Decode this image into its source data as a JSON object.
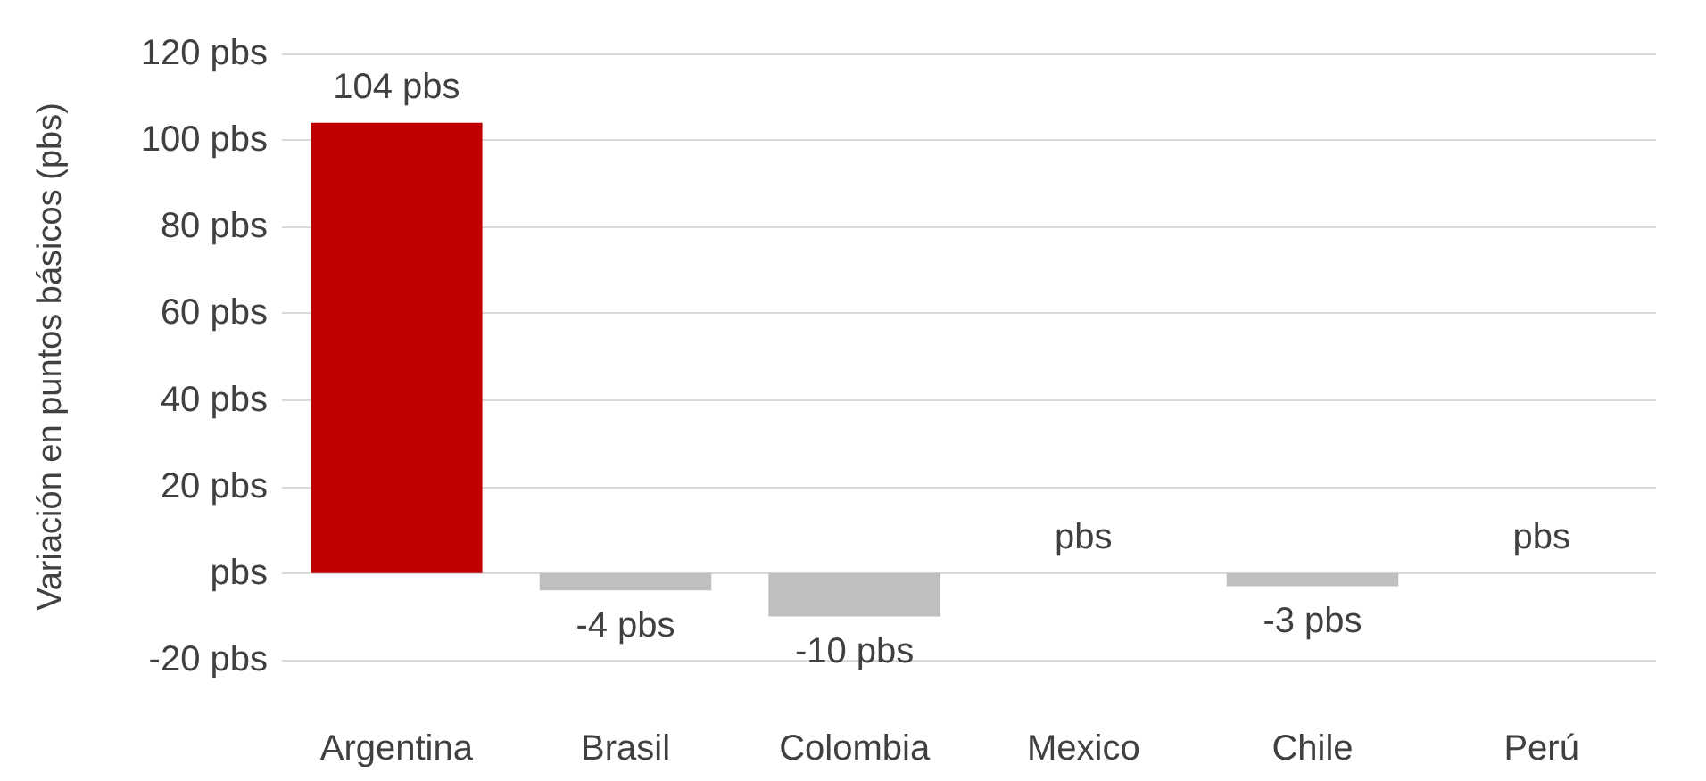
{
  "chart_data": {
    "type": "bar",
    "ylabel": "Variación en puntos básicos (pbs)",
    "categories": [
      "Argentina",
      "Brasil",
      "Colombia",
      "Mexico",
      "Chile",
      "Perú"
    ],
    "values": [
      104,
      -4,
      -10,
      0,
      -3,
      0
    ],
    "colors": [
      "#c00000",
      "#bfbfbf",
      "#bfbfbf",
      "#bfbfbf",
      "#bfbfbf",
      "#bfbfbf"
    ],
    "value_labels": [
      "104 pbs",
      "-4 pbs",
      "-10 pbs",
      "pbs",
      "-3 pbs",
      "pbs"
    ],
    "ylim": [
      -20,
      120
    ],
    "yticks": [
      {
        "value": -20,
        "label": "-20 pbs"
      },
      {
        "value": 0,
        "label": "pbs"
      },
      {
        "value": 20,
        "label": "20 pbs"
      },
      {
        "value": 40,
        "label": "40 pbs"
      },
      {
        "value": 60,
        "label": "60 pbs"
      },
      {
        "value": 80,
        "label": "80 pbs"
      },
      {
        "value": 100,
        "label": "100 pbs"
      },
      {
        "value": 120,
        "label": "120 pbs"
      }
    ],
    "grid": true
  }
}
